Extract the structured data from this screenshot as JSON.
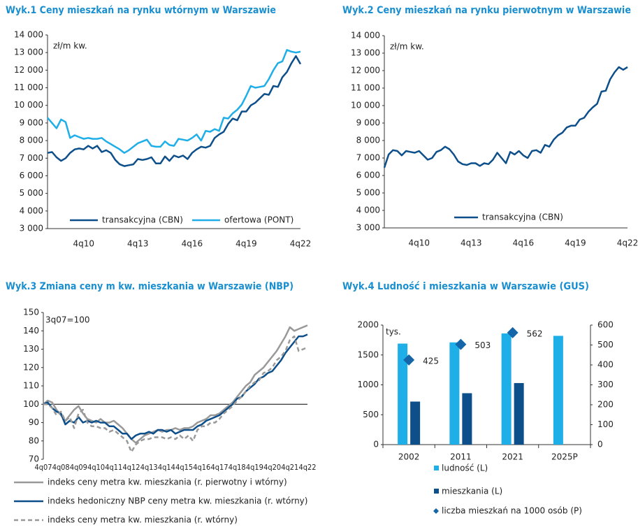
{
  "chart_data": [
    {
      "type": "line",
      "title": "Wyk.1 Ceny mieszkań na rynku wtórnym w Warszawie",
      "y_label": "zł/m kw.",
      "categories": [
        null,
        null,
        null,
        null,
        null,
        null,
        null,
        null,
        "4q10",
        null,
        null,
        null,
        null,
        null,
        null,
        null,
        null,
        null,
        null,
        null,
        "4q13",
        null,
        null,
        null,
        null,
        null,
        null,
        null,
        null,
        null,
        null,
        null,
        "4q16",
        null,
        null,
        null,
        null,
        null,
        null,
        null,
        null,
        null,
        null,
        null,
        "4q19",
        null,
        null,
        null,
        null,
        null,
        null,
        null,
        null,
        null,
        null,
        null,
        "4q22"
      ],
      "series": [
        {
          "name": "transakcyjna (CBN)",
          "color": "#0d4f8b",
          "values": [
            7300,
            7350,
            7050,
            6850,
            7000,
            7300,
            7500,
            7550,
            7500,
            7700,
            7550,
            7700,
            7350,
            7450,
            7300,
            6900,
            6650,
            6550,
            6600,
            6650,
            6950,
            6900,
            6950,
            7050,
            6700,
            6700,
            7100,
            6850,
            7150,
            7050,
            7150,
            6950,
            7300,
            7500,
            7650,
            7600,
            7700,
            8150,
            8350,
            8500,
            8950,
            9250,
            9150,
            9650,
            9650,
            10000,
            10150,
            10400,
            10650,
            10600,
            11100,
            11050,
            11600,
            11900,
            12400,
            12800,
            12350
          ]
        },
        {
          "name": "ofertowa (PONT)",
          "color": "#1eaee8",
          "values": [
            9300,
            9000,
            8700,
            9200,
            9050,
            8150,
            8300,
            8200,
            8100,
            8150,
            8100,
            8100,
            8150,
            7950,
            7800,
            7650,
            7500,
            7300,
            7450,
            7650,
            7850,
            7950,
            8050,
            7700,
            7650,
            7650,
            7950,
            7750,
            7700,
            8100,
            8050,
            8000,
            8150,
            8350,
            8000,
            8550,
            8500,
            8650,
            8550,
            9300,
            9250,
            9550,
            9750,
            10050,
            10550,
            11100,
            11000,
            11050,
            11100,
            11500,
            12000,
            12400,
            12500,
            13150,
            13050,
            13000,
            13050
          ]
        }
      ],
      "ylim": [
        3000,
        14000
      ],
      "yticks": [
        {
          "value": 3000,
          "label": "3 000"
        },
        {
          "value": 4000,
          "label": "4 000"
        },
        {
          "value": 5000,
          "label": "5 000"
        },
        {
          "value": 6000,
          "label": "6 000"
        },
        {
          "value": 7000,
          "label": "7 000"
        },
        {
          "value": 8000,
          "label": "8 000"
        },
        {
          "value": 9000,
          "label": "9 000"
        },
        {
          "value": 10000,
          "label": "10 000"
        },
        {
          "value": 11000,
          "label": "11 000"
        },
        {
          "value": 12000,
          "label": "12 000"
        },
        {
          "value": 13000,
          "label": "13 000"
        },
        {
          "value": 14000,
          "label": "14 000"
        }
      ],
      "legend": "lower center"
    },
    {
      "type": "line",
      "title": "Wyk.2 Ceny mieszkań na rynku pierwotnym w Warszawie",
      "y_label": "zł/m kw.",
      "categories": [
        null,
        null,
        null,
        null,
        null,
        null,
        null,
        null,
        "4q10",
        null,
        null,
        null,
        null,
        null,
        null,
        null,
        null,
        null,
        null,
        null,
        "4q13",
        null,
        null,
        null,
        null,
        null,
        null,
        null,
        null,
        null,
        null,
        null,
        "4q16",
        null,
        null,
        null,
        null,
        null,
        null,
        null,
        null,
        null,
        null,
        null,
        "4q19",
        null,
        null,
        null,
        null,
        null,
        null,
        null,
        null,
        null,
        null,
        null,
        "4q22"
      ],
      "series": [
        {
          "name": "transakcyjna (CBN)",
          "color": "#0d4f8b",
          "values": [
            6450,
            7200,
            7450,
            7400,
            7150,
            7400,
            7350,
            7300,
            7400,
            7150,
            6900,
            7000,
            7350,
            7450,
            7650,
            7500,
            7200,
            6800,
            6650,
            6600,
            6700,
            6700,
            6550,
            6700,
            6650,
            6900,
            7300,
            7000,
            6700,
            7350,
            7200,
            7400,
            7150,
            7000,
            7400,
            7450,
            7300,
            7750,
            7650,
            8050,
            8300,
            8450,
            8750,
            8850,
            8850,
            9200,
            9300,
            9650,
            9900,
            10100,
            10800,
            10850,
            11500,
            11900,
            12200,
            12050,
            12200
          ]
        }
      ],
      "ylim": [
        3000,
        14000
      ],
      "yticks": [
        {
          "value": 3000,
          "label": "3 000"
        },
        {
          "value": 4000,
          "label": "4 000"
        },
        {
          "value": 5000,
          "label": "5 000"
        },
        {
          "value": 6000,
          "label": "6 000"
        },
        {
          "value": 7000,
          "label": "7 000"
        },
        {
          "value": 8000,
          "label": "8 000"
        },
        {
          "value": 9000,
          "label": "9 000"
        },
        {
          "value": 10000,
          "label": "10 000"
        },
        {
          "value": 11000,
          "label": "11 000"
        },
        {
          "value": 12000,
          "label": "12 000"
        },
        {
          "value": 13000,
          "label": "13 000"
        },
        {
          "value": 14000,
          "label": "14 000"
        }
      ],
      "legend": "lower center"
    },
    {
      "type": "line",
      "title": "Wyk.3 Zmiana ceny m kw. mieszkania w Warszawie (NBP)",
      "y_label": "3q07=100",
      "categories": [
        "4q07",
        null,
        null,
        null,
        "4q08",
        null,
        null,
        null,
        "4q09",
        null,
        null,
        null,
        "4q10",
        null,
        null,
        null,
        "4q11",
        null,
        null,
        null,
        "4q12",
        null,
        null,
        null,
        "4q13",
        null,
        null,
        null,
        "4q14",
        null,
        null,
        null,
        "4q15",
        null,
        null,
        null,
        "4q16",
        null,
        null,
        null,
        "4q17",
        null,
        null,
        null,
        "4q18",
        null,
        null,
        null,
        "4q19",
        null,
        null,
        null,
        "4q20",
        null,
        null,
        null,
        "4q21",
        null,
        null,
        null,
        "4q22"
      ],
      "series": [
        {
          "name": "indeks ceny metra kw. mieszkania (r. pierwotny i wtórny)",
          "color": "#999999",
          "style": "solid",
          "values": [
            100,
            102,
            101,
            97,
            94,
            91,
            94,
            97,
            99,
            95,
            92,
            91,
            90,
            92,
            90,
            90,
            91,
            89,
            87,
            84,
            81,
            79,
            81,
            83,
            84,
            85,
            86,
            85,
            86,
            86,
            87,
            86,
            87,
            87,
            88,
            90,
            91,
            92,
            94,
            94,
            95,
            97,
            99,
            101,
            104,
            107,
            110,
            112,
            116,
            118,
            120,
            123,
            126,
            129,
            133,
            137,
            142,
            140,
            141,
            142,
            143
          ]
        },
        {
          "name": "indeks hedoniczny NBP ceny metra kw. mieszkania (r. wtórny)",
          "color": "#0d4f8b",
          "style": "solid",
          "values": [
            100,
            101,
            98,
            96,
            95,
            89,
            91,
            90,
            93,
            90,
            91,
            90,
            91,
            90,
            90,
            88,
            88,
            86,
            84,
            84,
            81,
            83,
            84,
            84,
            85,
            84,
            86,
            86,
            85,
            86,
            84,
            85,
            86,
            86,
            86,
            88,
            89,
            91,
            92,
            93,
            94,
            96,
            98,
            100,
            103,
            104,
            107,
            109,
            111,
            114,
            115,
            117,
            118,
            121,
            124,
            128,
            131,
            134,
            137,
            137,
            138
          ]
        },
        {
          "name": "indeks ceny metra kw. mieszkania (r. wtórny)",
          "color": "#999999",
          "style": "dashed",
          "values": [
            100,
            100,
            98,
            94,
            96,
            91,
            93,
            87,
            95,
            97,
            90,
            88,
            88,
            87,
            87,
            85,
            86,
            84,
            82,
            80,
            74,
            78,
            80,
            81,
            81,
            82,
            82,
            82,
            81,
            82,
            81,
            83,
            81,
            83,
            80,
            86,
            88,
            88,
            90,
            90,
            92,
            95,
            97,
            99,
            102,
            104,
            107,
            110,
            112,
            113,
            117,
            118,
            120,
            124,
            126,
            129,
            135,
            137,
            129,
            130,
            131
          ]
        }
      ],
      "ylim": [
        70,
        150
      ],
      "yticks": [
        70,
        80,
        90,
        100,
        110,
        120,
        130,
        140,
        150
      ],
      "baseline": 100,
      "legend": "bottom"
    },
    {
      "type": "bar",
      "title": "Wyk.4 Ludność i mieszkania w Warszawie (GUS)",
      "y_label": "tys.",
      "categories": [
        "2002",
        "2011",
        "2021",
        "2025P"
      ],
      "series": [
        {
          "name": "ludność (L)",
          "color": "#1eaee8",
          "values": [
            1690,
            1710,
            1860,
            1820
          ]
        },
        {
          "name": "mieszkania (L)",
          "color": "#0d4f8b",
          "values": [
            720,
            860,
            1030,
            null
          ]
        },
        {
          "name": "liczba mieszkań na 1000 osób (P)",
          "color": "#1566a8",
          "axis": "y2",
          "marker": "diamond",
          "values": [
            425,
            503,
            562,
            null
          ]
        }
      ],
      "ylim": [
        0,
        2000
      ],
      "yticks": [
        0,
        500,
        1000,
        1500,
        2000
      ],
      "y2lim": [
        0,
        600
      ],
      "y2ticks": [
        0,
        100,
        200,
        300,
        400,
        500,
        600
      ],
      "legend": "bottom"
    }
  ]
}
